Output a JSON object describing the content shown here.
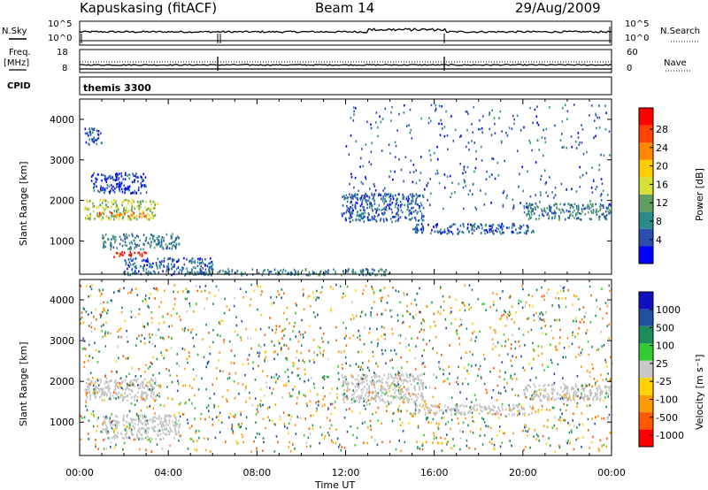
{
  "header": {
    "station": "Kapuskasing (fitACF)",
    "beam": "Beam 14",
    "date": "29/Aug/2009"
  },
  "panels": {
    "nsky_label": "N.Sky",
    "nsky_ticks": [
      "10^5",
      "10^0"
    ],
    "nsearch_label": "N.Search",
    "nsearch_ticks": [
      "10^5",
      "10^0"
    ],
    "freq_label_1": "Freq.",
    "freq_label_2": "[MHz]",
    "freq_ticks": [
      "18",
      "8"
    ],
    "nave_label": "Nave",
    "nave_ticks": [
      "60",
      "0"
    ],
    "cpid_label": "CPID",
    "cpid_value": "themis 3300"
  },
  "colors": {
    "power": [
      "#0000ff",
      "#2a4eb0",
      "#2e8b8b",
      "#5fa05f",
      "#d8e03a",
      "#ffcc00",
      "#ff8800",
      "#ff4400",
      "#ff0000"
    ],
    "velocity": [
      "#ff0000",
      "#ff5a00",
      "#ff9a00",
      "#ffd200",
      "#c8c8c8",
      "#33cc33",
      "#1e8c5a",
      "#2050a0",
      "#1010c0"
    ],
    "ground_scatter": "#c0c0c0"
  },
  "chart_data": [
    {
      "type": "heatmap",
      "name": "power-panel",
      "xlabel": "",
      "ylabel": "Slant Range [km]",
      "xlim": [
        "00:00",
        "24:00"
      ],
      "ylim": [
        180,
        4500
      ],
      "yticks": [
        "4000",
        "3000",
        "2000",
        "1000"
      ],
      "colorbar": {
        "label": "Power [dB]",
        "ticks": [
          "28",
          "24",
          "20",
          "16",
          "12",
          "8",
          "4"
        ],
        "range": [
          0,
          30
        ]
      },
      "regions": [
        {
          "t": [
            0.2,
            3.5
          ],
          "r": [
            1550,
            2050
          ],
          "value": 14
        },
        {
          "t": [
            0.8,
            3.0
          ],
          "r": [
            1620,
            1720
          ],
          "value": 24
        },
        {
          "t": [
            1.0,
            4.5
          ],
          "r": [
            820,
            1200
          ],
          "value": 8
        },
        {
          "t": [
            1.5,
            3.0
          ],
          "r": [
            620,
            760
          ],
          "value": 28
        },
        {
          "t": [
            2.0,
            6.0
          ],
          "r": [
            180,
            600
          ],
          "value": 6
        },
        {
          "t": [
            5.0,
            14.0
          ],
          "r": [
            180,
            330
          ],
          "value": 8
        },
        {
          "t": [
            11.8,
            15.5
          ],
          "r": [
            1500,
            2200
          ],
          "value": 6
        },
        {
          "t": [
            15.0,
            20.5
          ],
          "r": [
            1200,
            1450
          ],
          "value": 6
        },
        {
          "t": [
            20.0,
            24.0
          ],
          "r": [
            1550,
            1950
          ],
          "value": 8
        },
        {
          "t": [
            0.2,
            1.0
          ],
          "r": [
            3400,
            3800
          ],
          "value": 6
        },
        {
          "t": [
            0.5,
            3.0
          ],
          "r": [
            2200,
            2700
          ],
          "value": 4
        },
        {
          "t": [
            12.0,
            24.0
          ],
          "r": [
            1800,
            4400
          ],
          "value": 6
        }
      ]
    },
    {
      "type": "heatmap",
      "name": "velocity-panel",
      "xlabel": "Time UT",
      "ylabel": "Slant Range [km]",
      "xlim": [
        "00:00",
        "24:00"
      ],
      "ylim": [
        180,
        4500
      ],
      "yticks": [
        "4000",
        "3000",
        "2000",
        "1000"
      ],
      "xticks": [
        "00:00",
        "04:00",
        "08:00",
        "12:00",
        "16:00",
        "20:00",
        "00:00"
      ],
      "colorbar": {
        "label": "Velocity [m s⁻¹]",
        "ticks": [
          "1000",
          "500",
          "100",
          "25",
          "-25",
          "-100",
          "-500",
          "-1000"
        ],
        "range": [
          -1200,
          1200
        ]
      },
      "regions": [
        {
          "t": [
            0.2,
            3.5
          ],
          "r": [
            1550,
            2100
          ],
          "value": 0
        },
        {
          "t": [
            1.0,
            4.5
          ],
          "r": [
            600,
            1200
          ],
          "value": 0
        },
        {
          "t": [
            11.8,
            15.5
          ],
          "r": [
            1500,
            2200
          ],
          "value": 0
        },
        {
          "t": [
            15.0,
            20.5
          ],
          "r": [
            1200,
            1450
          ],
          "value": 0
        },
        {
          "t": [
            20.0,
            24.0
          ],
          "r": [
            1550,
            1950
          ],
          "value": 0
        },
        {
          "t": [
            0.0,
            24.0
          ],
          "r": [
            300,
            4400
          ],
          "value": -300
        },
        {
          "t": [
            0.0,
            24.0
          ],
          "r": [
            300,
            4400
          ],
          "value": 300
        }
      ]
    }
  ]
}
